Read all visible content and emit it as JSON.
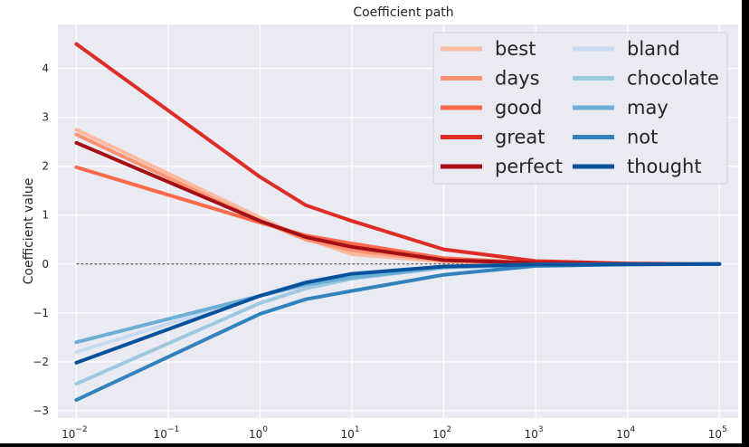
{
  "chart_data": {
    "type": "line",
    "title": "Coefficient path",
    "xlabel": "",
    "ylabel": "Coefficient value",
    "xscale": "log",
    "x": [
      0.01,
      1,
      3.16,
      10,
      100,
      1000,
      10000,
      100000
    ],
    "x_tick_values": [
      0.01,
      0.1,
      1,
      10,
      100,
      1000,
      10000,
      100000
    ],
    "x_tick_labels": [
      "10",
      "10",
      "10",
      "10",
      "10",
      "10",
      "10",
      "10"
    ],
    "x_tick_exponents": [
      "−2",
      "−1",
      "0",
      "1",
      "2",
      "3",
      "4",
      "5"
    ],
    "y_ticks": [
      -3,
      -2,
      -1,
      0,
      1,
      2,
      3,
      4
    ],
    "y_tick_labels": [
      "−3",
      "−2",
      "−1",
      "0",
      "1",
      "2",
      "3",
      "4"
    ],
    "xlim": [
      0.0063,
      160000
    ],
    "ylim": [
      -3.15,
      4.9
    ],
    "grid": true,
    "zero_line": true,
    "legend_position": "top-right",
    "legend_columns": 2,
    "series": [
      {
        "name": "best",
        "color": "#fcbba1",
        "values": [
          2.75,
          0.95,
          0.52,
          0.2,
          0.05,
          0.01,
          0.005,
          0.0
        ]
      },
      {
        "name": "days",
        "color": "#fc9272",
        "values": [
          2.65,
          0.88,
          0.5,
          0.28,
          0.07,
          0.015,
          0.005,
          0.0
        ]
      },
      {
        "name": "good",
        "color": "#fb6a4a",
        "values": [
          1.98,
          0.85,
          0.58,
          0.42,
          0.12,
          0.02,
          0.005,
          0.0
        ]
      },
      {
        "name": "great",
        "color": "#de2d26",
        "values": [
          4.5,
          1.78,
          1.2,
          0.88,
          0.3,
          0.06,
          0.01,
          0.0
        ]
      },
      {
        "name": "perfect",
        "color": "#a50f15",
        "values": [
          2.48,
          0.88,
          0.55,
          0.35,
          0.08,
          0.02,
          0.005,
          0.0
        ]
      },
      {
        "name": "bland",
        "color": "#c6dbef",
        "values": [
          -1.8,
          -0.65,
          -0.35,
          -0.22,
          -0.05,
          -0.01,
          -0.005,
          0.0
        ]
      },
      {
        "name": "chocolate",
        "color": "#9ecae1",
        "values": [
          -2.45,
          -0.8,
          -0.5,
          -0.3,
          -0.07,
          -0.015,
          -0.005,
          0.0
        ]
      },
      {
        "name": "may",
        "color": "#6baed6",
        "values": [
          -1.6,
          -0.65,
          -0.42,
          -0.28,
          -0.07,
          -0.015,
          -0.005,
          0.0
        ]
      },
      {
        "name": "not",
        "color": "#3182bd",
        "values": [
          -2.78,
          -1.02,
          -0.72,
          -0.55,
          -0.22,
          -0.04,
          -0.01,
          0.0
        ]
      },
      {
        "name": "thought",
        "color": "#08519c",
        "values": [
          -2.02,
          -0.65,
          -0.38,
          -0.2,
          -0.05,
          -0.01,
          -0.005,
          0.0
        ]
      }
    ]
  }
}
